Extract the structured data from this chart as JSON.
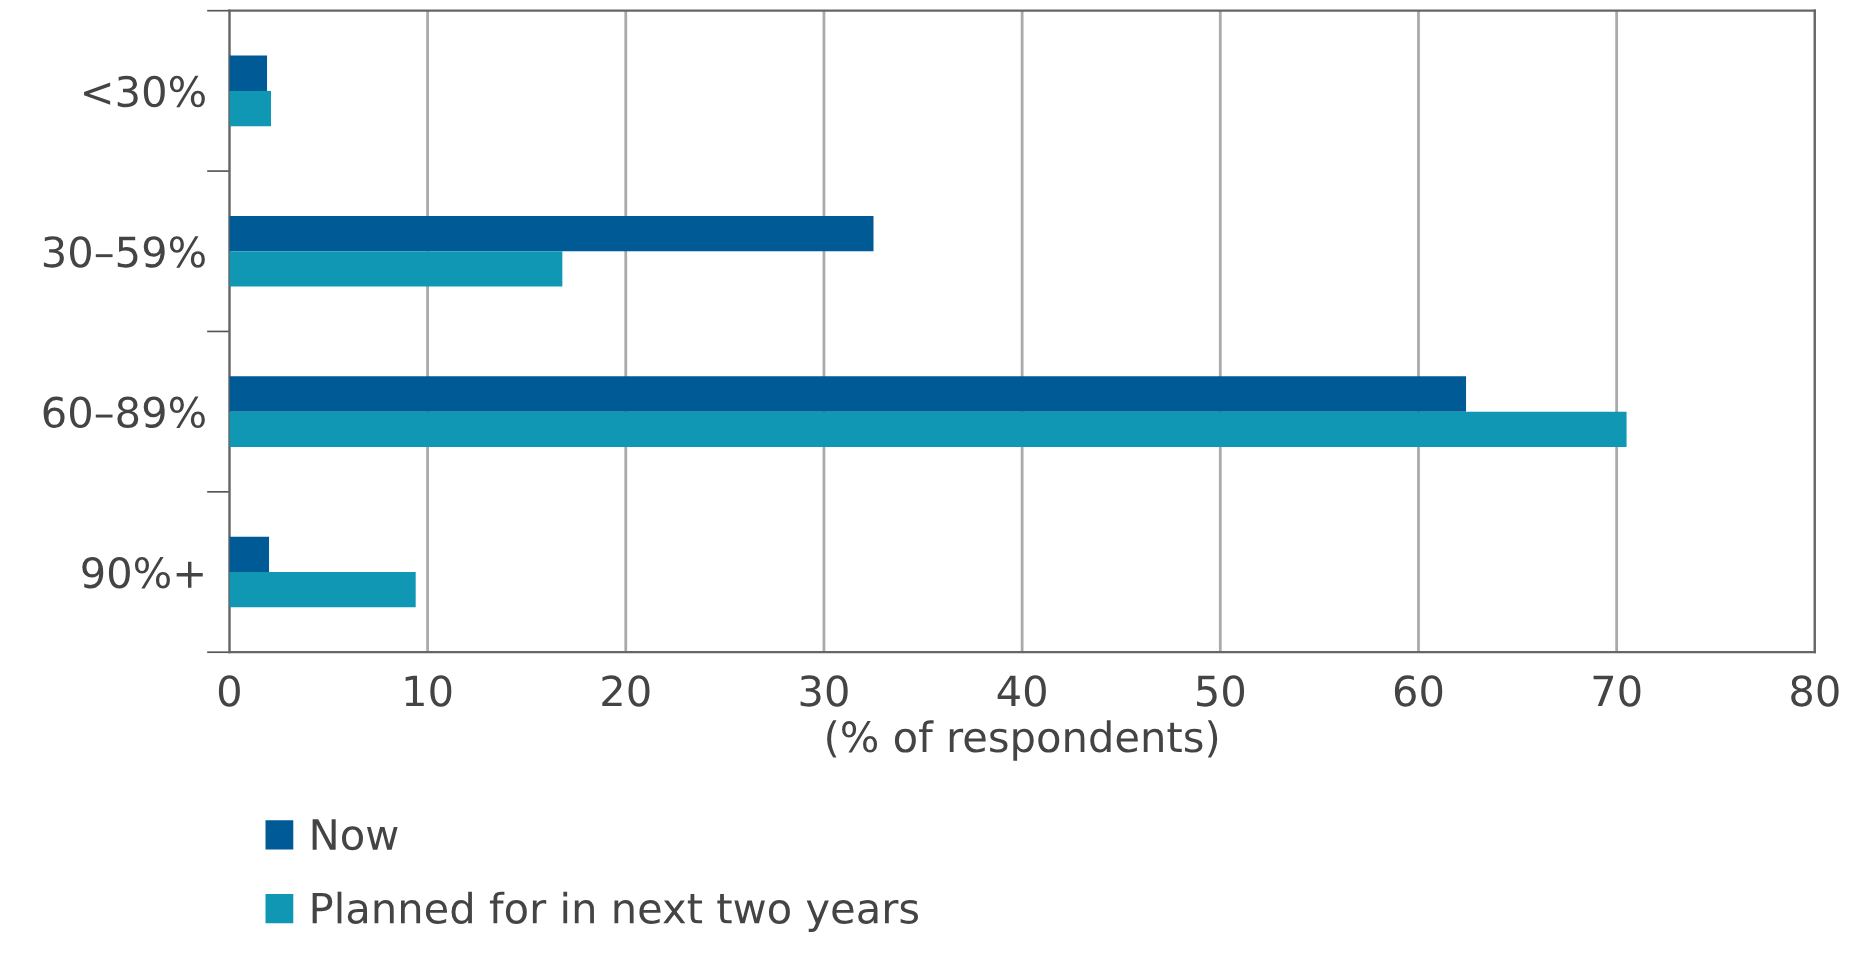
{
  "chart_data": {
    "type": "bar",
    "orientation": "horizontal",
    "xlabel": "(% of respondents)",
    "categories": [
      "<30%",
      "30–59%",
      "60–89%",
      "90%+"
    ],
    "series": [
      {
        "name": "Now",
        "color": "#005a96",
        "values": [
          1.9,
          32.5,
          62.4,
          2.0
        ]
      },
      {
        "name": "Planned for in next two years",
        "color": "#0f97b4",
        "values": [
          2.1,
          16.8,
          70.5,
          9.4
        ]
      }
    ],
    "xlim": [
      0,
      80
    ],
    "xticks": [
      0,
      10,
      20,
      30,
      40,
      50,
      60,
      70,
      80
    ],
    "grid": "x",
    "legend": "bottom"
  }
}
